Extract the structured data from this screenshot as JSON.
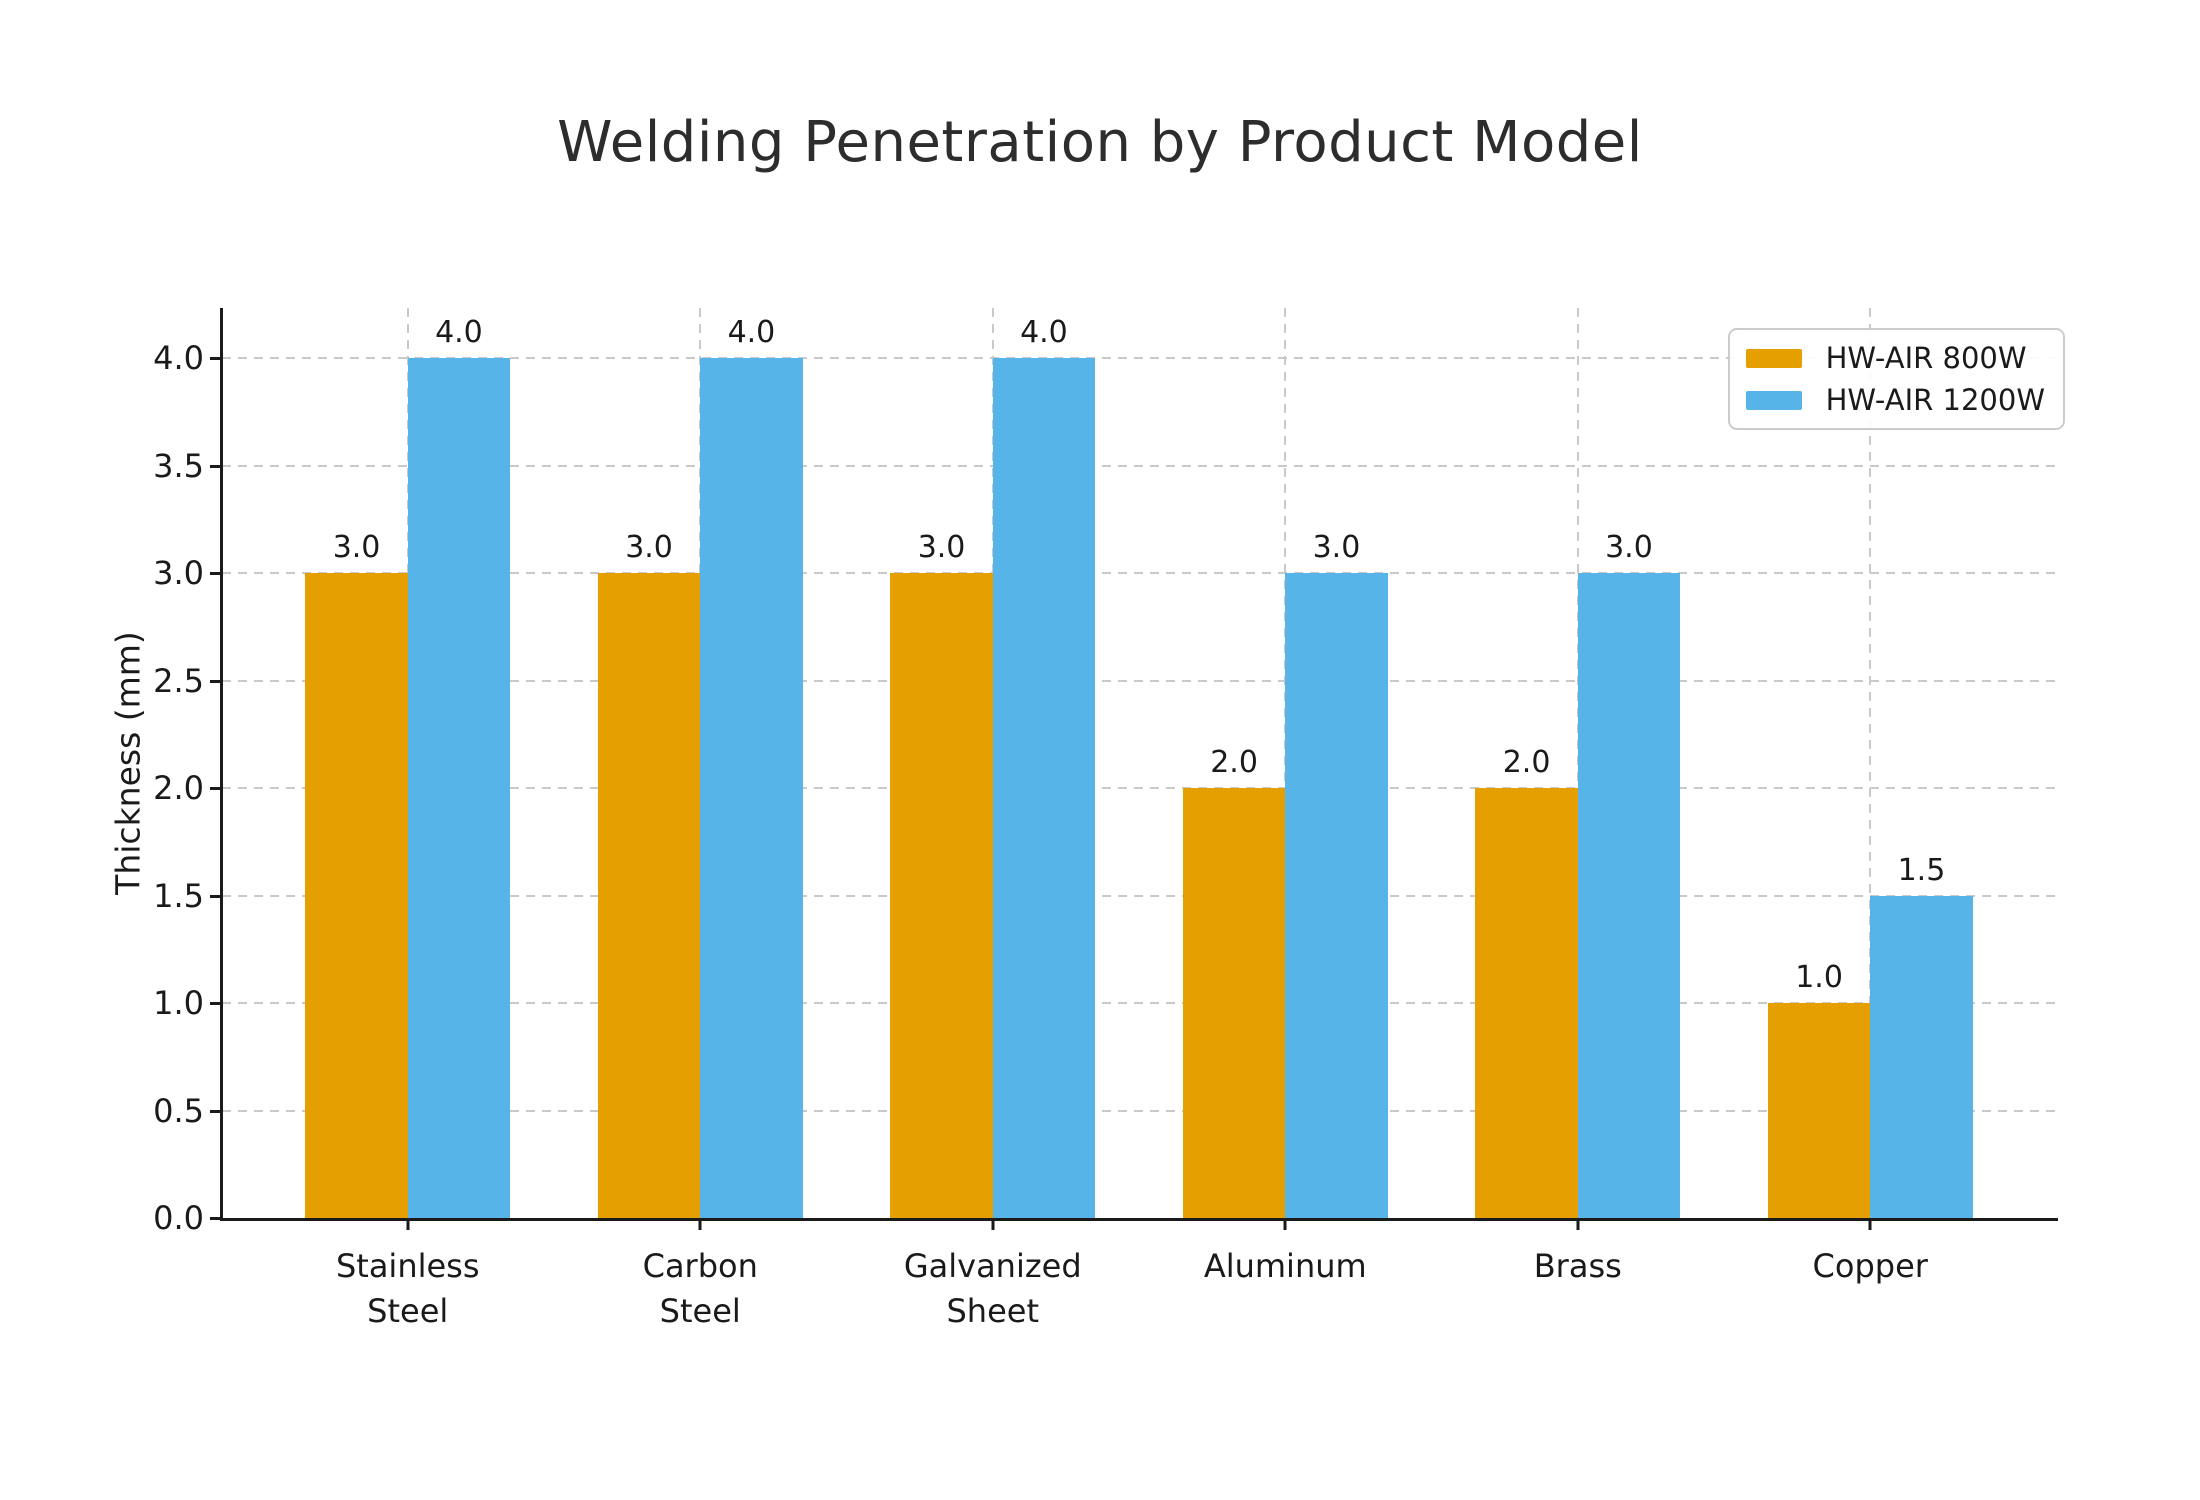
{
  "page": {
    "title": "Welding Penetration by Product Model"
  },
  "chart_data": {
    "type": "bar",
    "title": "Welding Penetration by Product Model",
    "xlabel": "",
    "ylabel": "Thickness (mm)",
    "categories": [
      "Stainless\nSteel",
      "Carbon\nSteel",
      "Galvanized\nSheet",
      "Aluminum",
      "Brass",
      "Copper"
    ],
    "series": [
      {
        "name": "HW-AIR 800W",
        "color": "#E69F00",
        "values": [
          3.0,
          3.0,
          3.0,
          2.0,
          2.0,
          1.0
        ]
      },
      {
        "name": "HW-AIR 1200W",
        "color": "#56B4E9",
        "values": [
          4.0,
          4.0,
          4.0,
          3.0,
          3.0,
          1.5
        ]
      }
    ],
    "bar_value_labels": [
      "3.0",
      "4.0",
      "3.0",
      "4.0",
      "3.0",
      "4.0",
      "2.0",
      "3.0",
      "2.0",
      "3.0",
      "1.0",
      "1.5"
    ],
    "yticks": [
      0.0,
      0.5,
      1.0,
      1.5,
      2.0,
      2.5,
      3.0,
      3.5,
      4.0
    ],
    "ylim": [
      0,
      4.233
    ],
    "xlim": [
      -0.635,
      5.635
    ],
    "bar_width": 0.35,
    "grid": {
      "show": true,
      "style": "dashed",
      "color": "#c9c9c9",
      "axisbelow": true
    },
    "legend": {
      "position": "upper right"
    }
  },
  "colors": {
    "series_orange": "#E69F00",
    "series_blue": "#56B4E9",
    "text": "#1a1a1a",
    "grid": "#c9c9c9",
    "spine": "#1a1a1a",
    "background": "#ffffff"
  }
}
